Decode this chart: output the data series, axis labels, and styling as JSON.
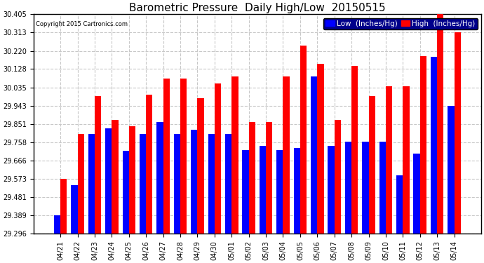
{
  "title": "Barometric Pressure  Daily High/Low  20150515",
  "copyright": "Copyright 2015 Cartronics.com",
  "legend_low": "Low  (Inches/Hg)",
  "legend_high": "High  (Inches/Hg)",
  "categories": [
    "04/21",
    "04/22",
    "04/23",
    "04/24",
    "04/25",
    "04/26",
    "04/27",
    "04/28",
    "04/29",
    "04/30",
    "05/01",
    "05/02",
    "05/03",
    "05/04",
    "05/05",
    "05/06",
    "05/07",
    "05/08",
    "05/09",
    "05/10",
    "05/11",
    "05/12",
    "05/13",
    "05/14"
  ],
  "low_values": [
    29.389,
    29.54,
    29.8,
    29.83,
    29.715,
    29.8,
    29.86,
    29.8,
    29.82,
    29.8,
    29.8,
    29.72,
    29.74,
    29.72,
    29.73,
    30.09,
    29.74,
    29.76,
    29.76,
    29.76,
    29.59,
    29.7,
    30.19,
    29.943
  ],
  "high_values": [
    29.573,
    29.8,
    29.99,
    29.87,
    29.84,
    30.0,
    30.08,
    30.08,
    29.98,
    30.055,
    30.09,
    29.86,
    29.86,
    30.09,
    30.245,
    30.155,
    29.87,
    30.145,
    29.99,
    30.04,
    30.04,
    30.195,
    30.405,
    30.313
  ],
  "ylim_min": 29.296,
  "ylim_max": 30.405,
  "yticks": [
    29.296,
    29.389,
    29.481,
    29.573,
    29.666,
    29.758,
    29.851,
    29.943,
    30.035,
    30.128,
    30.22,
    30.313,
    30.405
  ],
  "low_color": "#0000ff",
  "high_color": "#ff0000",
  "bg_color": "#ffffff",
  "grid_color": "#c8c8c8",
  "bar_width": 0.38,
  "title_fontsize": 11,
  "tick_fontsize": 7,
  "legend_fontsize": 7.5
}
